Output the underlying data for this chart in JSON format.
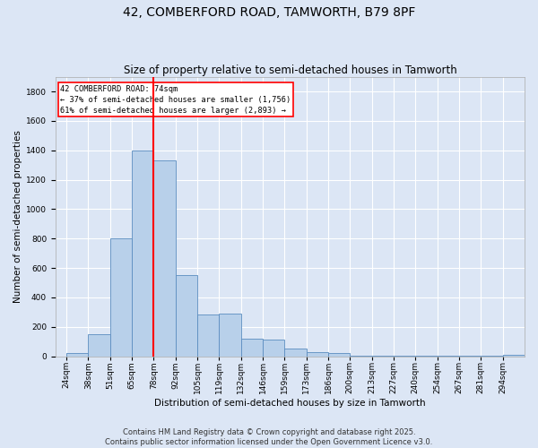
{
  "title_line1": "42, COMBERFORD ROAD, TAMWORTH, B79 8PF",
  "title_line2": "Size of property relative to semi-detached houses in Tamworth",
  "xlabel": "Distribution of semi-detached houses by size in Tamworth",
  "ylabel": "Number of semi-detached properties",
  "bar_color": "#b8d0ea",
  "bar_edge_color": "#5b8dc0",
  "background_color": "#dce6f5",
  "grid_color": "#ffffff",
  "vline_color": "red",
  "vline_bin_index": 4,
  "annotation_text": "42 COMBERFORD ROAD: 74sqm\n← 37% of semi-detached houses are smaller (1,756)\n61% of semi-detached houses are larger (2,893) →",
  "annotation_box_color": "white",
  "annotation_box_edge": "red",
  "bin_labels": [
    "24sqm",
    "38sqm",
    "51sqm",
    "65sqm",
    "78sqm",
    "92sqm",
    "105sqm",
    "119sqm",
    "132sqm",
    "146sqm",
    "159sqm",
    "173sqm",
    "186sqm",
    "200sqm",
    "213sqm",
    "227sqm",
    "240sqm",
    "254sqm",
    "267sqm",
    "281sqm",
    "294sqm"
  ],
  "counts": [
    20,
    150,
    800,
    1400,
    1330,
    550,
    285,
    290,
    120,
    115,
    50,
    25,
    22,
    5,
    5,
    3,
    2,
    2,
    2,
    2,
    10
  ],
  "ylim": [
    0,
    1900
  ],
  "yticks": [
    0,
    200,
    400,
    600,
    800,
    1000,
    1200,
    1400,
    1600,
    1800
  ],
  "footer_text": "Contains HM Land Registry data © Crown copyright and database right 2025.\nContains public sector information licensed under the Open Government Licence v3.0.",
  "title_fontsize": 10,
  "subtitle_fontsize": 8.5,
  "label_fontsize": 7.5,
  "tick_fontsize": 6.5,
  "footer_fontsize": 6
}
